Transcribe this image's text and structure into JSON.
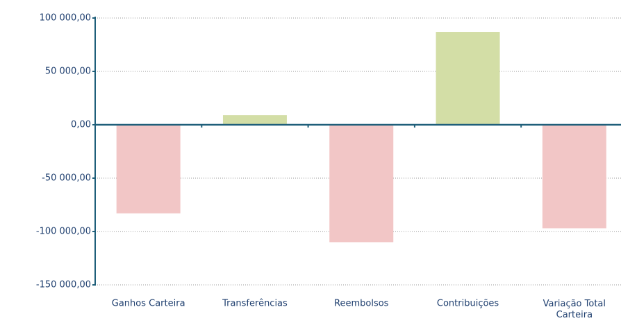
{
  "chart_data": {
    "type": "bar",
    "categories": [
      "Ganhos Carteira",
      "Transferências",
      "Reembolsos",
      "Contribuições",
      "Variação Total Carteira"
    ],
    "values": [
      -83000,
      9000,
      -110000,
      87000,
      -97000
    ],
    "colors": [
      "#f2c6c6",
      "#d3dea6",
      "#f2c6c6",
      "#d3dea6",
      "#f2c6c6"
    ],
    "ylim": [
      -150000,
      100000
    ],
    "yticks": [
      {
        "value": -150000,
        "label": "-150 000,00"
      },
      {
        "value": -100000,
        "label": "-100 000,00"
      },
      {
        "value": -50000,
        "label": "-50 000,00"
      },
      {
        "value": 0,
        "label": "0,00"
      },
      {
        "value": 50000,
        "label": "50 000,00"
      },
      {
        "value": 100000,
        "label": "100 000,00"
      }
    ],
    "grid": true
  }
}
